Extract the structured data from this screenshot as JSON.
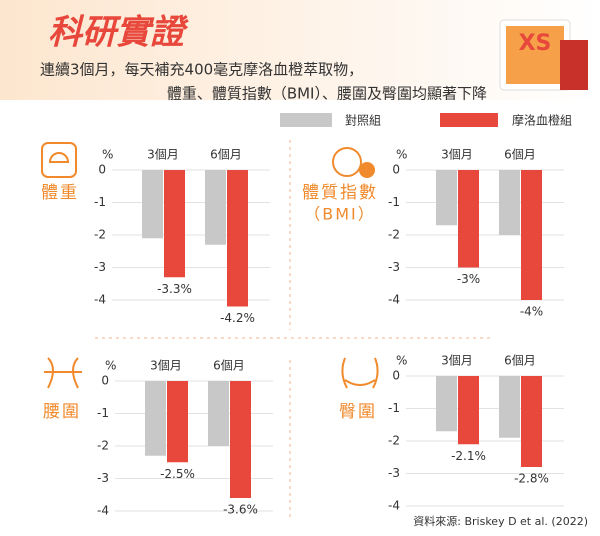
{
  "header": {
    "title": "科研實證",
    "subtitle": [
      "連續3個月，每天補充400毫克摩洛血橙萃取物，",
      "體重、體質指數（BMI）、腰圍及臀圍均顯著下降"
    ]
  },
  "source": "資料來源: Briskey D et al. (2022)",
  "chart_data": [
    {
      "type": "bar",
      "title": "體重",
      "y_label": "%",
      "categories": [
        "3個月",
        "6個月"
      ],
      "series": [
        {
          "name": "對照組",
          "color": "#c8c8c8",
          "values": [
            -2.1,
            -2.3
          ]
        },
        {
          "name": "摩洛血橙組",
          "color": "#e8473b",
          "values": [
            -3.3,
            -4.2
          ],
          "value_labels": [
            "-3.3%",
            "-4.2%"
          ]
        }
      ],
      "ylim": [
        -4.4,
        0
      ],
      "yticks": [
        0,
        -1,
        -2,
        -3,
        -4
      ],
      "grid": true
    },
    {
      "type": "bar",
      "title": "體質指數",
      "subtitle": "（BMI）",
      "y_label": "%",
      "categories": [
        "3個月",
        "6個月"
      ],
      "series": [
        {
          "name": "對照組",
          "color": "#c8c8c8",
          "values": [
            -1.7,
            -2
          ]
        },
        {
          "name": "摩洛血橙組",
          "color": "#e8473b",
          "values": [
            -3,
            -4
          ],
          "value_labels": [
            "-3%",
            "-4%"
          ]
        }
      ],
      "ylim": [
        -4.4,
        0
      ],
      "yticks": [
        0,
        -1,
        -2,
        -3,
        -4
      ],
      "grid": true
    },
    {
      "type": "bar",
      "title": "腰圍",
      "y_label": "%",
      "categories": [
        "3個月",
        "6個月"
      ],
      "series": [
        {
          "name": "對照組",
          "color": "#c8c8c8",
          "values": [
            -2.3,
            -2
          ]
        },
        {
          "name": "摩洛血橙組",
          "color": "#e8473b",
          "values": [
            -2.5,
            -3.6
          ],
          "value_labels": [
            "-2.5%",
            "-3.6%"
          ]
        }
      ],
      "ylim": [
        -4.4,
        0
      ],
      "yticks": [
        0,
        -1,
        -2,
        -3,
        -4
      ],
      "grid": true
    },
    {
      "type": "bar",
      "title": "臀圍",
      "y_label": "%",
      "categories": [
        "3個月",
        "6個月"
      ],
      "series": [
        {
          "name": "對照組",
          "color": "#c8c8c8",
          "values": [
            -1.7,
            -1.9
          ]
        },
        {
          "name": "摩洛血橙組",
          "color": "#e8473b",
          "values": [
            -2.1,
            -2.8
          ],
          "value_labels": [
            "-2.1%",
            "-2.8%"
          ]
        }
      ],
      "ylim": [
        -4.4,
        0
      ],
      "yticks": [
        0,
        -1,
        -2,
        -3,
        -4
      ],
      "grid": true
    }
  ]
}
